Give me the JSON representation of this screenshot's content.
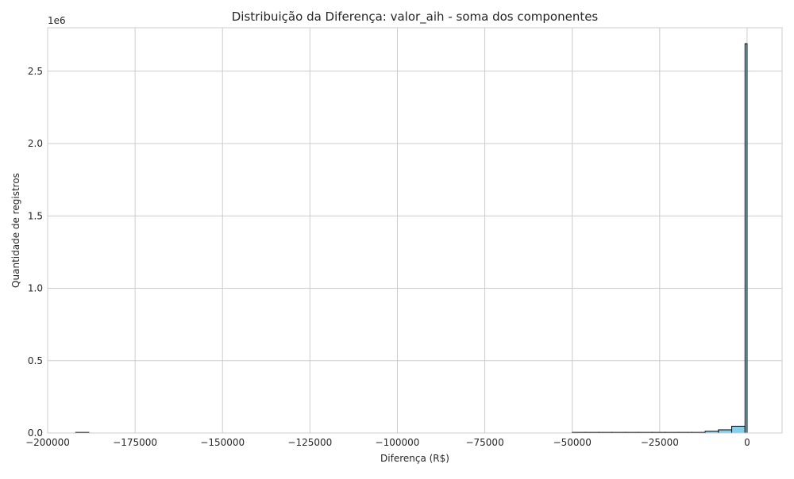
{
  "chart_data": {
    "type": "bar",
    "title": "Distribuição da Diferença: valor_aih - soma dos componentes",
    "xlabel": "Diferença (R$)",
    "ylabel": "Quantidade de registros",
    "y_offset_text": "1e6",
    "xlim": [
      -200000,
      10000
    ],
    "ylim": [
      0,
      2.8
    ],
    "x_ticks": [
      -200000,
      -175000,
      -150000,
      -125000,
      -100000,
      -75000,
      -50000,
      -25000,
      0
    ],
    "x_tick_labels": [
      "−200000",
      "−175000",
      "−150000",
      "−125000",
      "−100000",
      "−75000",
      "−50000",
      "−25000",
      "0"
    ],
    "y_ticks": [
      0,
      0.5,
      1.0,
      1.5,
      2.0,
      2.5
    ],
    "y_tick_labels": [
      "0.0",
      "0.5",
      "1.0",
      "1.5",
      "2.0",
      "2.5"
    ],
    "grid": true,
    "series": [
      {
        "bins": [
          {
            "x0": -192000,
            "x1": -188200,
            "count": 1e-05
          },
          {
            "x0": -50000,
            "x1": -46200,
            "count": 0.0003
          },
          {
            "x0": -46200,
            "x1": -42400,
            "count": 0.0004
          },
          {
            "x0": -42400,
            "x1": -38600,
            "count": 0.0005
          },
          {
            "x0": -38600,
            "x1": -34800,
            "count": 0.0006
          },
          {
            "x0": -34800,
            "x1": -31000,
            "count": 0.0007
          },
          {
            "x0": -31000,
            "x1": -27200,
            "count": 0.0008
          },
          {
            "x0": -27200,
            "x1": -23400,
            "count": 0.001
          },
          {
            "x0": -23400,
            "x1": -19600,
            "count": 0.0015
          },
          {
            "x0": -19600,
            "x1": -15800,
            "count": 0.002
          },
          {
            "x0": -15800,
            "x1": -12000,
            "count": 0.004
          },
          {
            "x0": -12000,
            "x1": -8200,
            "count": 0.012
          },
          {
            "x0": -8200,
            "x1": -4400,
            "count": 0.022
          },
          {
            "x0": -4400,
            "x1": -600,
            "count": 0.047
          },
          {
            "x0": -600,
            "x1": 0,
            "count": 2.69
          }
        ]
      }
    ],
    "colors": {
      "bar_fill": "#87ceeb",
      "bar_edge": "#000000",
      "grid": "#cccccc",
      "axes_edge": "#cccccc",
      "text": "#262626"
    }
  }
}
